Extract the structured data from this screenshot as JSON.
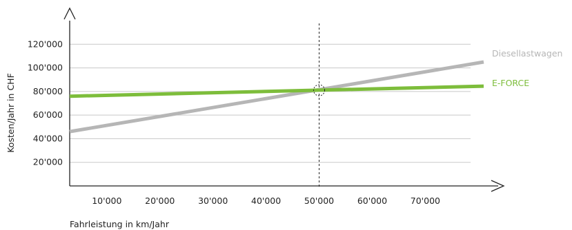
{
  "chart_data": {
    "type": "line",
    "xlabel": "Fahrleistung in km/Jahr",
    "ylabel": "Kosten/Jahr in CHF",
    "x_ticks": [
      "10'000",
      "20'000",
      "30'000",
      "40'000",
      "50'000",
      "60'000",
      "70'000"
    ],
    "y_ticks": [
      "20'000",
      "40'000",
      "60'000",
      "80'000",
      "100'000",
      "120'000"
    ],
    "x_tick_values": [
      10000,
      20000,
      30000,
      40000,
      50000,
      60000,
      70000
    ],
    "y_tick_values": [
      20000,
      40000,
      60000,
      80000,
      100000,
      120000
    ],
    "xlim": [
      3000,
      81000
    ],
    "ylim": [
      0,
      140000
    ],
    "grid": true,
    "marker_x": 50000,
    "series": [
      {
        "name": "Diesellastwagen",
        "color": "#b6b6b6",
        "x": [
          3000,
          81000
        ],
        "y": [
          46000,
          105000
        ]
      },
      {
        "name": "E-FORCE",
        "color": "#7dbd3b",
        "x": [
          3000,
          81000
        ],
        "y": [
          76000,
          84500
        ]
      }
    ]
  }
}
